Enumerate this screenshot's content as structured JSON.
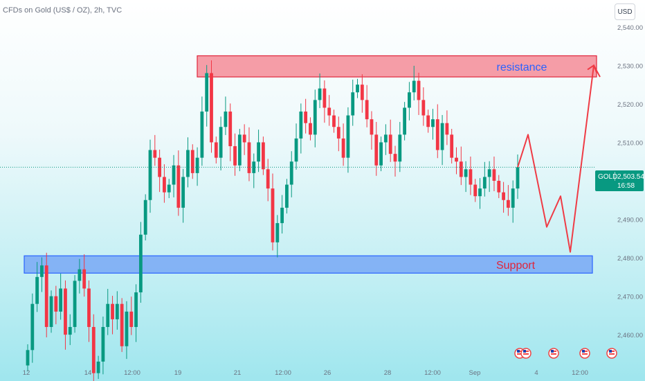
{
  "header": {
    "title": "CFDs on Gold (US$ / OZ), 2h, TVC",
    "currency": "USD"
  },
  "last_price": {
    "symbol": "GOLD",
    "price": "2,503.54",
    "countdown": "16:58",
    "value": 2503.54,
    "color": "#089981"
  },
  "colors": {
    "up": "#089981",
    "down": "#f23645",
    "resistance_fill": "#f48c98",
    "resistance_border": "#e0243a",
    "support_fill": "#78a8f5",
    "support_border": "#2962ff",
    "projection": "#ef3b45"
  },
  "chart_data": {
    "type": "candlestick",
    "title": "CFDs on Gold (US$ / OZ), 2h, TVC",
    "ylim": [
      2453,
      2547
    ],
    "y_ticks": [
      {
        "value": 2540,
        "label": "2,540.00"
      },
      {
        "value": 2530,
        "label": "2,530.00"
      },
      {
        "value": 2520,
        "label": "2,520.00"
      },
      {
        "value": 2510,
        "label": "2,510.00"
      },
      {
        "value": 2490,
        "label": "2,490.00"
      },
      {
        "value": 2480,
        "label": "2,480.00"
      },
      {
        "value": 2470,
        "label": "2,470.00"
      },
      {
        "value": 2460,
        "label": "2,460.00"
      }
    ],
    "x_ticks": [
      "12",
      "14",
      "12:00",
      "19",
      "21",
      "12:00",
      "26",
      "28",
      "12:00",
      "Sep",
      "4",
      "12:00"
    ],
    "zones": [
      {
        "label": "resistance",
        "low": 2527,
        "high": 2532.5
      },
      {
        "label": "Support",
        "low": 2476,
        "high": 2480.5
      }
    ],
    "projection": [
      2503.5,
      2512,
      2488,
      2496,
      2481.5,
      2530,
      2527
    ],
    "closes": [
      2456,
      2468,
      2475,
      2478,
      2462,
      2470,
      2466,
      2472,
      2460,
      2462,
      2474,
      2477,
      2472,
      2462,
      2450,
      2453,
      2462,
      2468,
      2464,
      2468,
      2457,
      2466,
      2462,
      2471,
      2486,
      2495,
      2508,
      2506,
      2501,
      2497,
      2499,
      2504,
      2493,
      2501,
      2508,
      2502,
      2506,
      2518,
      2528,
      2510,
      2506,
      2514,
      2518,
      2509,
      2504,
      2512,
      2510,
      2502,
      2505,
      2510,
      2503,
      2498,
      2484,
      2489,
      2493,
      2499,
      2505,
      2511,
      2518,
      2515,
      2512,
      2521,
      2524,
      2519,
      2517,
      2514,
      2511,
      2506,
      2517,
      2523,
      2525,
      2521,
      2516,
      2512,
      2504,
      2510,
      2512,
      2507,
      2505,
      2512,
      2519,
      2523,
      2526,
      2521,
      2517,
      2514,
      2516,
      2508,
      2515,
      2512,
      2506,
      2505,
      2501,
      2503,
      2499,
      2496,
      2498,
      2501,
      2503,
      2500,
      2497,
      2495,
      2493,
      2498,
      2503.54
    ]
  },
  "event_icons": [
    "lightning-flag-icon",
    "us-flag-icon",
    "us-flag-icon",
    "us-flag-icon",
    "us-flag-icon"
  ]
}
